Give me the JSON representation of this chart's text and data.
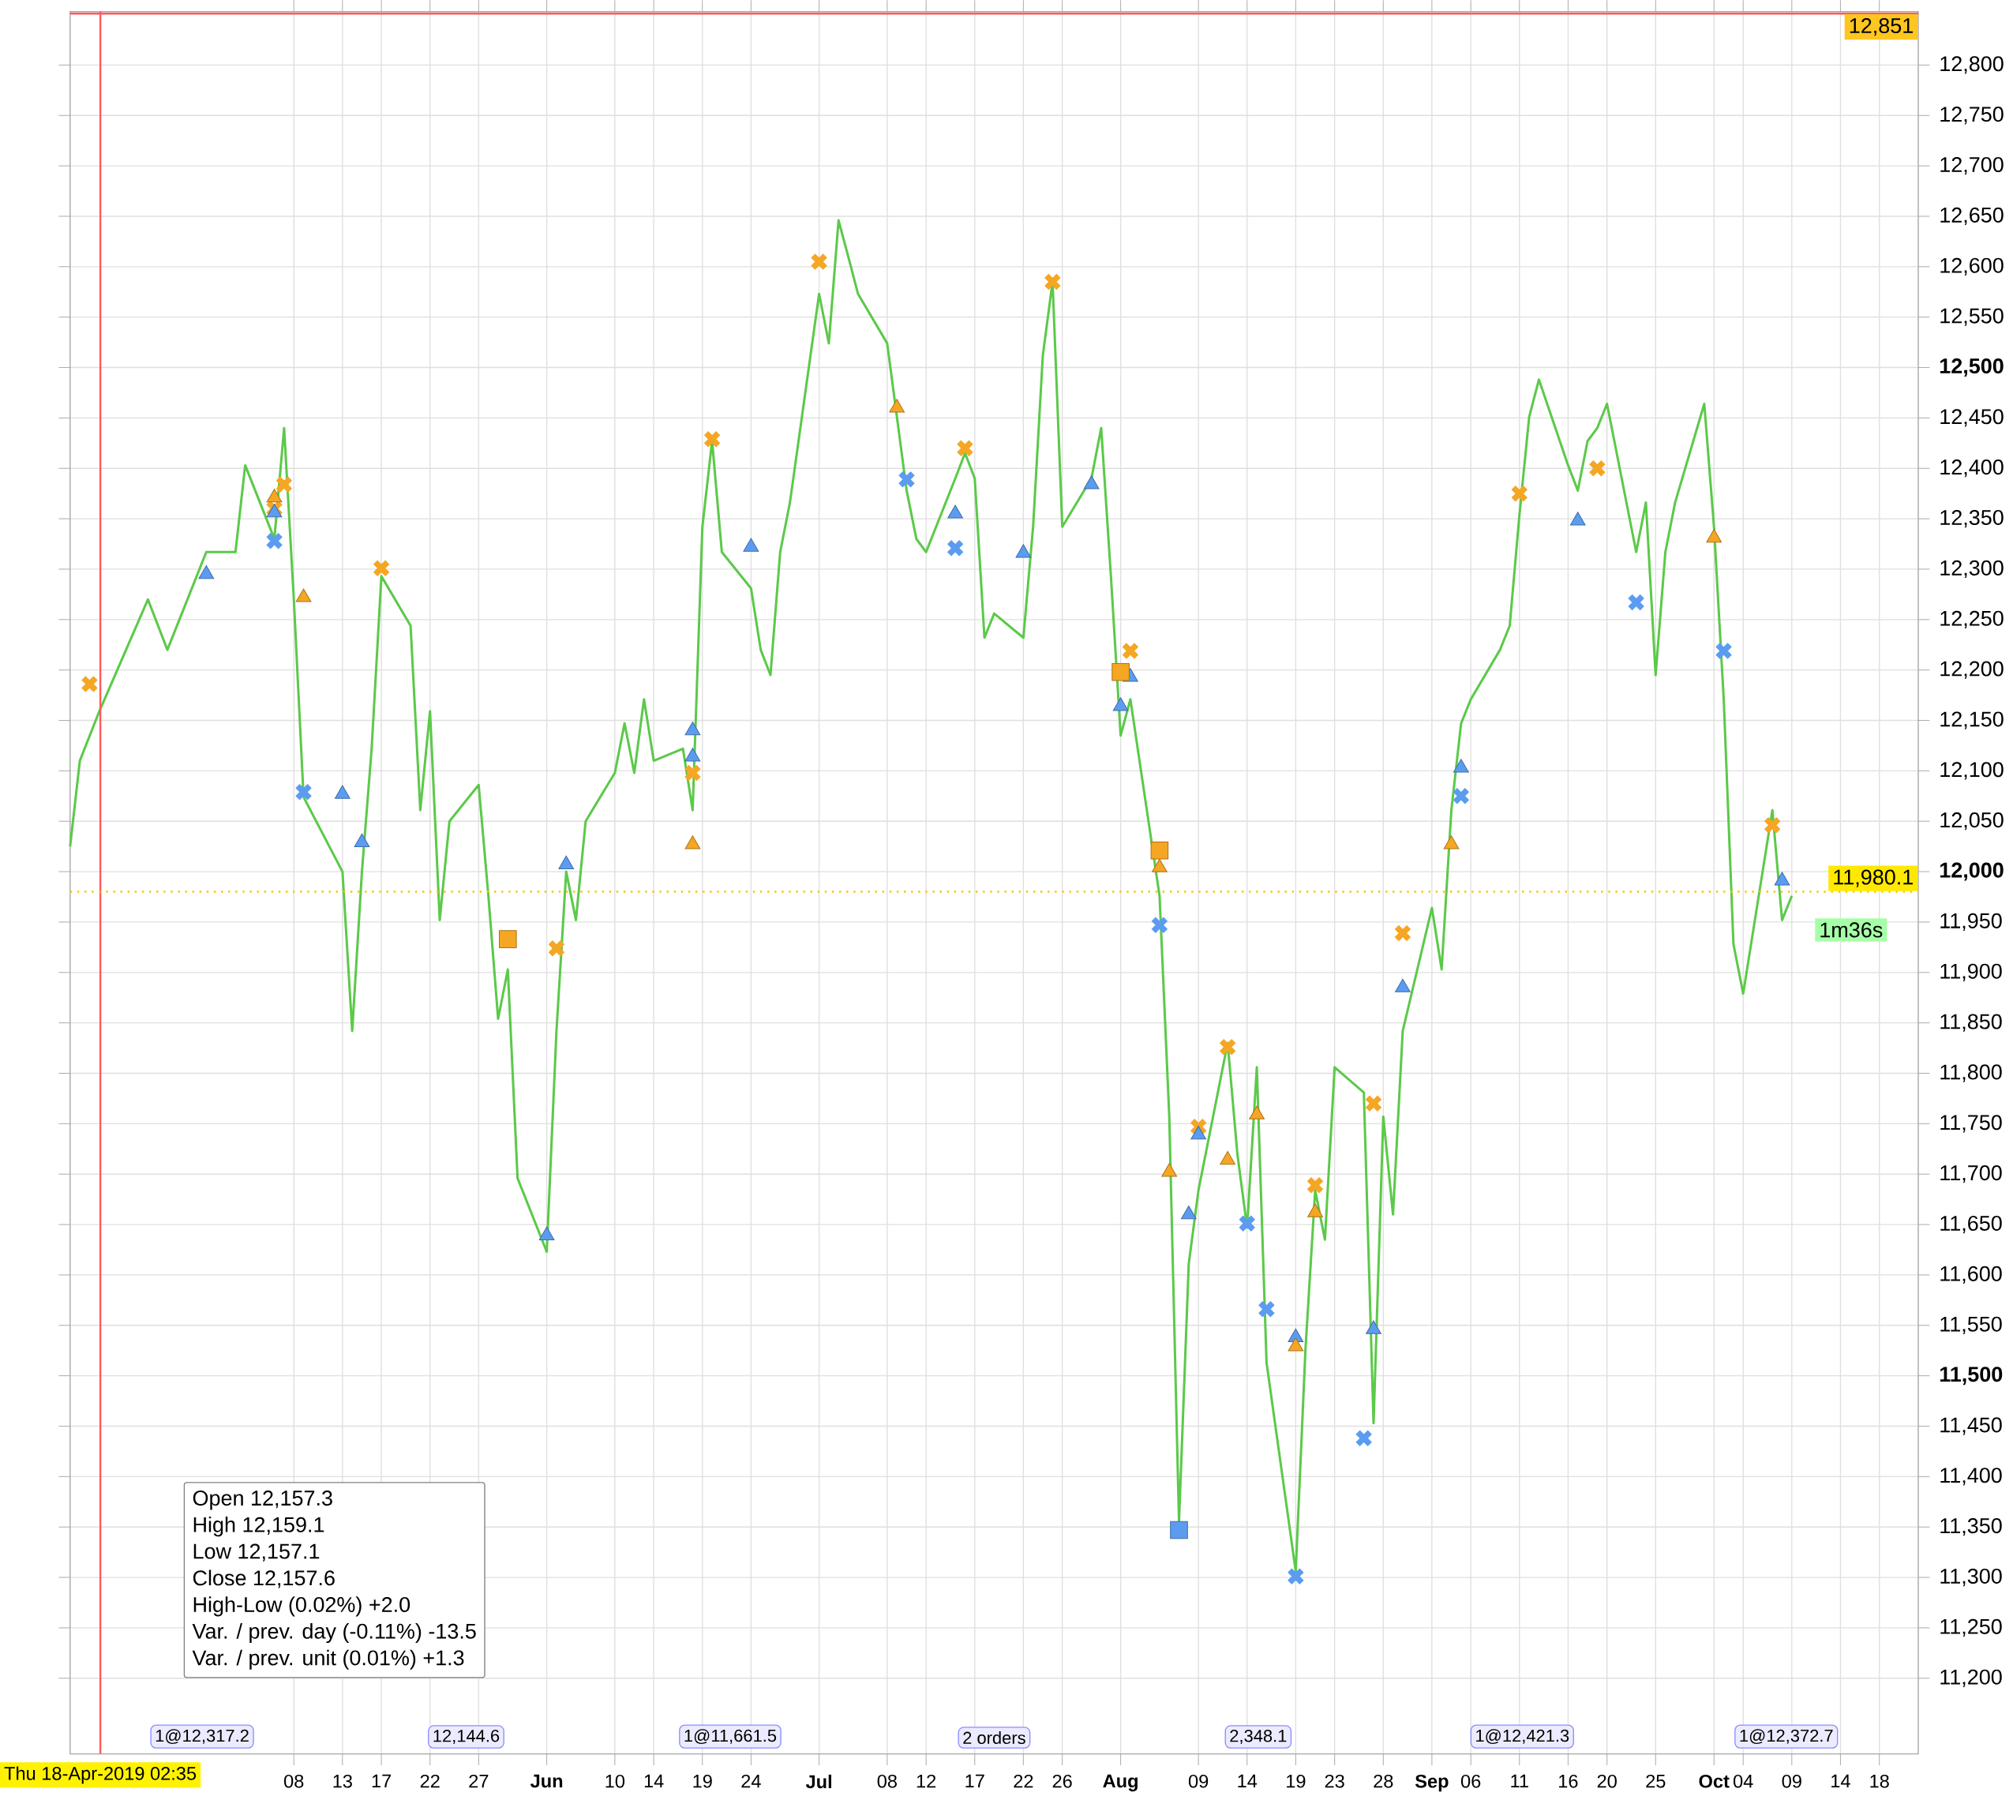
{
  "chart_data": {
    "type": "line",
    "xlim": [
      "2019-04-15",
      "2019-10-22"
    ],
    "ylim": [
      11125,
      12853
    ],
    "grid": true,
    "xticks": [
      {
        "value": "2019-05-08",
        "label": "08"
      },
      {
        "value": "2019-05-13",
        "label": "13"
      },
      {
        "value": "2019-05-17",
        "label": "17"
      },
      {
        "value": "2019-05-22",
        "label": "22"
      },
      {
        "value": "2019-05-27",
        "label": "27"
      },
      {
        "value": "2019-06-03",
        "label": "**Jun**"
      },
      {
        "value": "2019-06-10",
        "label": "10"
      },
      {
        "value": "2019-06-14",
        "label": "14"
      },
      {
        "value": "2019-06-19",
        "label": "19"
      },
      {
        "value": "2019-06-24",
        "label": "24"
      },
      {
        "value": "2019-07-01",
        "label": "**Jul**"
      },
      {
        "value": "2019-07-08",
        "label": "08"
      },
      {
        "value": "2019-07-12",
        "label": "12"
      },
      {
        "value": "2019-07-17",
        "label": "17"
      },
      {
        "value": "2019-07-22",
        "label": "22"
      },
      {
        "value": "2019-07-26",
        "label": "26"
      },
      {
        "value": "2019-08-01",
        "label": "**Aug**"
      },
      {
        "value": "2019-08-09",
        "label": "09"
      },
      {
        "value": "2019-08-14",
        "label": "14"
      },
      {
        "value": "2019-08-19",
        "label": "19"
      },
      {
        "value": "2019-08-23",
        "label": "23"
      },
      {
        "value": "2019-08-28",
        "label": "28"
      },
      {
        "value": "2019-09-02",
        "label": "**Sep**"
      },
      {
        "value": "2019-09-06",
        "label": "06"
      },
      {
        "value": "2019-09-11",
        "label": "11"
      },
      {
        "value": "2019-09-16",
        "label": "16"
      },
      {
        "value": "2019-09-20",
        "label": "20"
      },
      {
        "value": "2019-09-25",
        "label": "25"
      },
      {
        "value": "2019-10-01",
        "label": "**Oct**"
      },
      {
        "value": "2019-10-04",
        "label": "04"
      },
      {
        "value": "2019-10-09",
        "label": "09"
      },
      {
        "value": "2019-10-14",
        "label": "14"
      },
      {
        "value": "2019-10-18",
        "label": "18"
      }
    ],
    "yticks": [
      {
        "value": 11200,
        "label": "11,200"
      },
      {
        "value": 11250,
        "label": "11,250"
      },
      {
        "value": 11300,
        "label": "11,300"
      },
      {
        "value": 11350,
        "label": "11,350"
      },
      {
        "value": 11400,
        "label": "11,400"
      },
      {
        "value": 11450,
        "label": "11,450"
      },
      {
        "value": 11500,
        "label": "**11,500**"
      },
      {
        "value": 11550,
        "label": "11,550"
      },
      {
        "value": 11600,
        "label": "11,600"
      },
      {
        "value": 11650,
        "label": "11,650"
      },
      {
        "value": 11700,
        "label": "11,700"
      },
      {
        "value": 11750,
        "label": "11,750"
      },
      {
        "value": 11800,
        "label": "11,800"
      },
      {
        "value": 11850,
        "label": "11,850"
      },
      {
        "value": 11900,
        "label": "11,900"
      },
      {
        "value": 11950,
        "label": "11,950"
      },
      {
        "value": 12000,
        "label": "**12,000**"
      },
      {
        "value": 12050,
        "label": "12,050"
      },
      {
        "value": 12100,
        "label": "12,100"
      },
      {
        "value": 12150,
        "label": "12,150"
      },
      {
        "value": 12200,
        "label": "12,200"
      },
      {
        "value": 12250,
        "label": "12,250"
      },
      {
        "value": 12300,
        "label": "12,300"
      },
      {
        "value": 12350,
        "label": "12,350"
      },
      {
        "value": 12400,
        "label": "12,400"
      },
      {
        "value": 12450,
        "label": "12,450"
      },
      {
        "value": 12500,
        "label": "**12,500**"
      },
      {
        "value": 12550,
        "label": "12,550"
      },
      {
        "value": 12600,
        "label": "12,600"
      },
      {
        "value": 12650,
        "label": "12,650"
      },
      {
        "value": 12700,
        "label": "12,700"
      },
      {
        "value": 12750,
        "label": "12,750"
      },
      {
        "value": 12800,
        "label": "12,800"
      }
    ],
    "series": [
      {
        "color": "#5cc94a",
        "x": [
          "2019-04-15",
          "2019-04-16",
          "2019-04-18",
          "2019-04-23",
          "2019-04-25",
          "2019-04-29",
          "2019-05-02",
          "2019-05-03",
          "2019-05-06",
          "2019-05-07",
          "2019-05-08",
          "2019-05-09",
          "2019-05-13",
          "2019-05-14",
          "2019-05-15",
          "2019-05-16",
          "2019-05-17",
          "2019-05-20",
          "2019-05-21",
          "2019-05-22",
          "2019-05-23",
          "2019-05-24",
          "2019-05-27",
          "2019-05-28",
          "2019-05-29",
          "2019-05-30",
          "2019-05-31",
          "2019-06-03",
          "2019-06-04",
          "2019-06-05",
          "2019-06-06",
          "2019-06-07",
          "2019-06-10",
          "2019-06-11",
          "2019-06-12",
          "2019-06-13",
          "2019-06-14",
          "2019-06-17",
          "2019-06-18",
          "2019-06-19",
          "2019-06-20",
          "2019-06-21",
          "2019-06-24",
          "2019-06-25",
          "2019-06-26",
          "2019-06-27",
          "2019-06-28",
          "2019-07-01",
          "2019-07-02",
          "2019-07-03",
          "2019-07-04",
          "2019-07-05",
          "2019-07-08",
          "2019-07-09",
          "2019-07-10",
          "2019-07-11",
          "2019-07-12",
          "2019-07-15",
          "2019-07-16",
          "2019-07-17",
          "2019-07-18",
          "2019-07-19",
          "2019-07-22",
          "2019-07-23",
          "2019-07-24",
          "2019-07-25",
          "2019-07-26",
          "2019-07-29",
          "2019-07-30",
          "2019-07-31",
          "2019-08-01",
          "2019-08-02",
          "2019-08-05",
          "2019-08-06",
          "2019-08-07",
          "2019-08-08",
          "2019-08-09",
          "2019-08-12",
          "2019-08-13",
          "2019-08-14",
          "2019-08-15",
          "2019-08-16",
          "2019-08-19",
          "2019-08-20",
          "2019-08-21",
          "2019-08-22",
          "2019-08-23",
          "2019-08-26",
          "2019-08-27",
          "2019-08-28",
          "2019-08-29",
          "2019-08-30",
          "2019-09-02",
          "2019-09-03",
          "2019-09-04",
          "2019-09-05",
          "2019-09-06",
          "2019-09-09",
          "2019-09-10",
          "2019-09-11",
          "2019-09-12",
          "2019-09-13",
          "2019-09-16",
          "2019-09-17",
          "2019-09-18",
          "2019-09-19",
          "2019-09-20",
          "2019-09-23",
          "2019-09-24",
          "2019-09-25",
          "2019-09-26",
          "2019-09-27",
          "2019-09-30",
          "2019-10-01",
          "2019-10-02",
          "2019-10-03",
          "2019-10-04",
          "2019-10-07",
          "2019-10-08",
          "2019-10-09"
        ],
        "values": [
          12025,
          12110,
          12159,
          12270,
          12220,
          12317,
          12317,
          12403,
          12330,
          12440,
          12270,
          12074,
          12000,
          11842,
          12000,
          12122,
          12293,
          12244,
          12061,
          12159,
          11952,
          12050,
          12086,
          11976,
          11854,
          11903,
          11696,
          11623,
          11842,
          12000,
          11952,
          12050,
          12098,
          12147,
          12098,
          12171,
          12110,
          12122,
          12061,
          12342,
          12427,
          12317,
          12281,
          12220,
          12195,
          12317,
          12366,
          12573,
          12524,
          12646,
          12610,
          12573,
          12524,
          12451,
          12378,
          12330,
          12317,
          12390,
          12415,
          12390,
          12232,
          12256,
          12232,
          12342,
          12512,
          12585,
          12342,
          12390,
          12440,
          12293,
          12135,
          12171,
          11976,
          11757,
          11355,
          11611,
          11684,
          11830,
          11720,
          11647,
          11806,
          11513,
          11306,
          11526,
          11684,
          11635,
          11806,
          11781,
          11453,
          11757,
          11660,
          11842,
          11964,
          11903,
          12061,
          12147,
          12171,
          12220,
          12244,
          12354,
          12451,
          12488,
          12403,
          12378,
          12427,
          12440,
          12464,
          12317,
          12366,
          12195,
          12317,
          12366,
          12464,
          12342,
          12171,
          11928,
          11879,
          12061,
          11952,
          11976
        ]
      },
      {
        "type": "scatter",
        "marker": "cross",
        "color": "#f5a623",
        "x": [
          "2019-04-17",
          "2019-05-06",
          "2019-05-07",
          "2019-05-17",
          "2019-06-04",
          "2019-06-18",
          "2019-06-20",
          "2019-07-01",
          "2019-07-16",
          "2019-07-25",
          "2019-08-02",
          "2019-08-09",
          "2019-08-12",
          "2019-08-21",
          "2019-08-27",
          "2019-08-30",
          "2019-09-11",
          "2019-09-19",
          "2019-10-07"
        ],
        "values": [
          12186,
          12360,
          12384,
          12301,
          11924,
          12098,
          12429,
          12605,
          12420,
          12585,
          12219,
          11747,
          11826,
          11689,
          11770,
          11939,
          12375,
          12400,
          12046
        ]
      },
      {
        "type": "scatter",
        "marker": "cross",
        "color": "#5b9cf0",
        "x": [
          "2019-05-06",
          "2019-05-09",
          "2019-07-10",
          "2019-07-15",
          "2019-08-05",
          "2019-08-14",
          "2019-08-16",
          "2019-08-19",
          "2019-08-26",
          "2019-09-05",
          "2019-09-23",
          "2019-10-02"
        ],
        "values": [
          12328,
          12079,
          12389,
          12321,
          11947,
          11651,
          11566,
          11301,
          11438,
          12075,
          12267,
          12219
        ]
      },
      {
        "type": "scatter",
        "marker": "triangle",
        "color": "#5b9cf0",
        "x": [
          "2019-04-29",
          "2019-05-06",
          "2019-05-13",
          "2019-05-15",
          "2019-06-03",
          "2019-06-05",
          "2019-06-18",
          "2019-06-18",
          "2019-06-24",
          "2019-07-15",
          "2019-07-22",
          "2019-07-29",
          "2019-08-01",
          "2019-08-02",
          "2019-08-08",
          "2019-08-09",
          "2019-08-19",
          "2019-08-27",
          "2019-08-30",
          "2019-09-05",
          "2019-09-17",
          "2019-10-08"
        ],
        "values": [
          12295,
          12356,
          12077,
          12029,
          11639,
          12007,
          12114,
          12140,
          12322,
          12355,
          12316,
          12384,
          12164,
          12193,
          11660,
          11739,
          11538,
          11546,
          11885,
          12103,
          12348,
          11991
        ]
      },
      {
        "type": "scatter",
        "marker": "triangle",
        "color": "#f5a623",
        "x": [
          "2019-05-06",
          "2019-05-09",
          "2019-06-18",
          "2019-07-09",
          "2019-08-05",
          "2019-08-06",
          "2019-08-12",
          "2019-08-15",
          "2019-08-19",
          "2019-08-21",
          "2019-09-04",
          "2019-10-01"
        ],
        "values": [
          12371,
          12272,
          12027,
          12460,
          12004,
          11702,
          11714,
          11759,
          11529,
          11662,
          12027,
          12331
        ]
      },
      {
        "type": "scatter",
        "marker": "square",
        "color": "#f5a623",
        "x": [
          "2019-05-30",
          "2019-08-01",
          "2019-08-05"
        ],
        "values": [
          11933,
          12198,
          12021
        ]
      },
      {
        "type": "scatter",
        "marker": "square",
        "color": "#5b9cf0",
        "x": [
          "2019-08-07"
        ],
        "values": [
          11347
        ]
      }
    ],
    "ref_lines": [
      {
        "axis": "x",
        "value": "2019-04-18T02:35",
        "label": "Thu 18-Apr-2019 02:35",
        "color": "#ff5a5a"
      },
      {
        "axis": "y",
        "value": 12851,
        "label": "12,851",
        "color": "#ff5a5a"
      },
      {
        "axis": "y",
        "value": 11980.1,
        "label": "11,980.1",
        "color": "#ffc000",
        "line_style": "dotted"
      }
    ],
    "annotations": [
      "Open 12,157.3",
      "High 12,159.1",
      "Low 12,157.1",
      "Close 12,157.6",
      "High-Low (0.02%) +2.0",
      "Var. / prev. day (-0.11%) -13.5",
      "Var. / prev. unit (0.01%) +1.3",
      "1@12,317.2",
      "12,144.6",
      "1@11,661.5",
      "2 orders",
      "2,348.1",
      "1@12,421.3",
      "1@12,372.7",
      "1m36s"
    ]
  }
}
